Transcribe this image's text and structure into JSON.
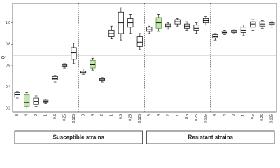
{
  "chart_data": {
    "type": "box",
    "ylabel": "Q",
    "categories": [
      "8",
      "4",
      "2",
      "1",
      "0.5",
      "0.25",
      "0.125",
      "8",
      "4",
      "2",
      "1",
      "0.5",
      "0.25",
      "0.125",
      "8",
      "4",
      "2",
      "1",
      "0.5",
      "0.25",
      "0.125",
      "8",
      "4",
      "2",
      "1",
      "0.5",
      "0.25",
      "0.125"
    ],
    "boxes": [
      [
        0.3,
        0.31,
        0.33,
        0.35,
        0.36
      ],
      [
        0.2,
        0.22,
        0.26,
        0.33,
        0.35
      ],
      [
        0.22,
        0.24,
        0.27,
        0.3,
        0.32
      ],
      [
        0.25,
        0.26,
        0.27,
        0.28,
        0.29
      ],
      [
        0.45,
        0.47,
        0.48,
        0.5,
        0.51
      ],
      [
        0.58,
        0.59,
        0.6,
        0.61,
        0.62
      ],
      [
        0.62,
        0.66,
        0.72,
        0.77,
        0.81
      ],
      [
        0.52,
        0.53,
        0.54,
        0.55,
        0.57
      ],
      [
        0.56,
        0.58,
        0.61,
        0.65,
        0.67
      ],
      [
        0.45,
        0.46,
        0.47,
        0.48,
        0.49
      ],
      [
        0.85,
        0.87,
        0.9,
        0.93,
        0.97
      ],
      [
        0.84,
        0.9,
        1.0,
        1.1,
        1.14
      ],
      [
        0.9,
        0.96,
        1.0,
        1.04,
        1.08
      ],
      [
        0.75,
        0.78,
        0.82,
        0.87,
        0.9
      ],
      [
        0.9,
        0.92,
        0.94,
        0.96,
        0.97
      ],
      [
        0.92,
        0.95,
        1.0,
        1.05,
        1.08
      ],
      [
        0.94,
        0.96,
        0.97,
        0.99,
        1.0
      ],
      [
        0.97,
        0.99,
        1.01,
        1.03,
        1.04
      ],
      [
        0.93,
        0.95,
        0.97,
        0.99,
        1.01
      ],
      [
        0.9,
        0.93,
        0.95,
        0.98,
        1.0
      ],
      [
        0.98,
        1.0,
        1.02,
        1.04,
        1.06
      ],
      [
        0.84,
        0.86,
        0.87,
        0.89,
        0.9
      ],
      [
        0.89,
        0.9,
        0.91,
        0.92,
        0.93
      ],
      [
        0.9,
        0.91,
        0.92,
        0.93,
        0.94
      ],
      [
        0.88,
        0.91,
        0.93,
        0.96,
        0.98
      ],
      [
        0.93,
        0.96,
        0.99,
        1.01,
        1.03
      ],
      [
        0.95,
        0.97,
        0.99,
        1.01,
        1.02
      ],
      [
        0.96,
        0.98,
        0.99,
        1.0,
        1.01
      ]
    ],
    "highlighted": [
      1,
      8,
      15,
      22
    ],
    "box_color": "#ffffff",
    "highlight_color": "#c9e4b4",
    "highlight_edge": "#5a9a3a",
    "panel_size": 7,
    "threshold": 0.7,
    "groups": [
      "Susceptible strains",
      "Resistant strains"
    ],
    "ylim": [
      0.17,
      1.18
    ],
    "yticks": [
      0.2,
      0.4,
      0.6,
      0.8,
      {
        "value": 1,
        "label": "1.0"
      }
    ]
  }
}
